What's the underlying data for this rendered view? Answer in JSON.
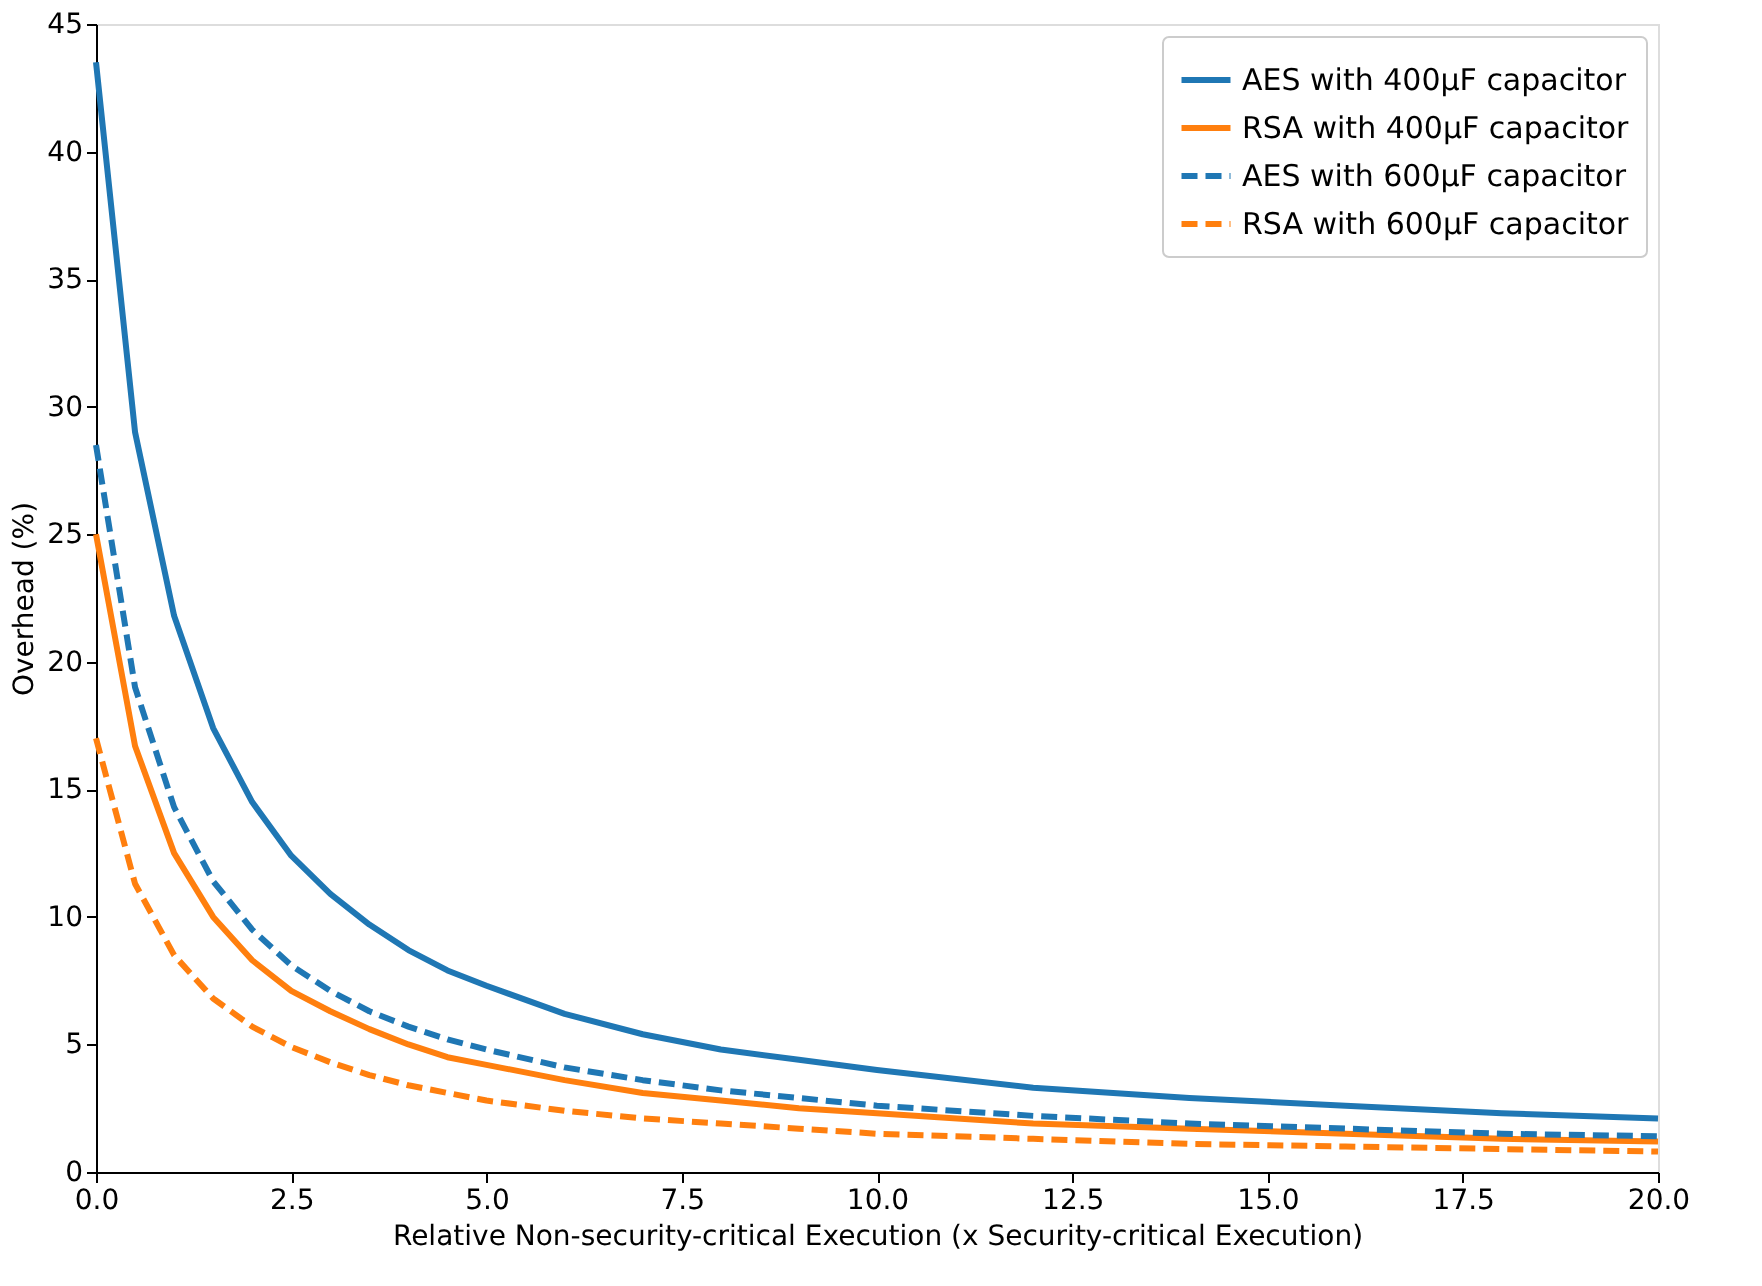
{
  "chart_data": {
    "type": "line",
    "xlabel": "Relative Non-security-critical Execution (x Security-critical Execution)",
    "ylabel": "Overhead (%)",
    "x": [
      0,
      0.5,
      1,
      1.5,
      2,
      2.5,
      3,
      3.5,
      4,
      4.5,
      5,
      6,
      7,
      8,
      9,
      10,
      12,
      14,
      16,
      18,
      20
    ],
    "series": [
      {
        "name": "AES with 400μF capacitor",
        "color": "#1f77b4",
        "line_style": "solid",
        "values": [
          43.5,
          29.0,
          21.8,
          17.4,
          14.5,
          12.4,
          10.9,
          9.7,
          8.7,
          7.9,
          7.3,
          6.2,
          5.4,
          4.8,
          4.4,
          4.0,
          3.3,
          2.9,
          2.6,
          2.3,
          2.1
        ]
      },
      {
        "name": "RSA with 400μF capacitor",
        "color": "#ff7f0e",
        "line_style": "solid",
        "values": [
          25,
          16.7,
          12.5,
          10,
          8.3,
          7.1,
          6.3,
          5.6,
          5,
          4.5,
          4.2,
          3.6,
          3.1,
          2.8,
          2.5,
          2.3,
          1.9,
          1.7,
          1.5,
          1.3,
          1.2
        ]
      },
      {
        "name": "AES with 600μF capacitor",
        "color": "#1f77b4",
        "line_style": "dashed",
        "values": [
          28.5,
          19,
          14.3,
          11.4,
          9.5,
          8.1,
          7.1,
          6.3,
          5.7,
          5.2,
          4.8,
          4.1,
          3.6,
          3.2,
          2.9,
          2.6,
          2.2,
          1.9,
          1.7,
          1.5,
          1.4
        ]
      },
      {
        "name": "RSA with 600μF capacitor",
        "color": "#ff7f0e",
        "line_style": "dashed",
        "values": [
          17,
          11.3,
          8.5,
          6.8,
          5.7,
          4.9,
          4.3,
          3.8,
          3.4,
          3.1,
          2.8,
          2.4,
          2.1,
          1.9,
          1.7,
          1.5,
          1.3,
          1.1,
          1.0,
          0.9,
          0.8
        ]
      }
    ],
    "xlim": [
      0,
      20
    ],
    "ylim": [
      0,
      45
    ],
    "xticks": [
      {
        "value": 0,
        "label": "0.0"
      },
      {
        "value": 2.5,
        "label": "2.5"
      },
      {
        "value": 5,
        "label": "5.0"
      },
      {
        "value": 7.5,
        "label": "7.5"
      },
      {
        "value": 10,
        "label": "10.0"
      },
      {
        "value": 12.5,
        "label": "12.5"
      },
      {
        "value": 15,
        "label": "15.0"
      },
      {
        "value": 17.5,
        "label": "17.5"
      },
      {
        "value": 20,
        "label": "20.0"
      }
    ],
    "yticks": [
      0,
      5,
      10,
      15,
      20,
      25,
      30,
      35,
      40,
      45
    ],
    "grid": false,
    "legend": "top right",
    "marker": "none"
  }
}
